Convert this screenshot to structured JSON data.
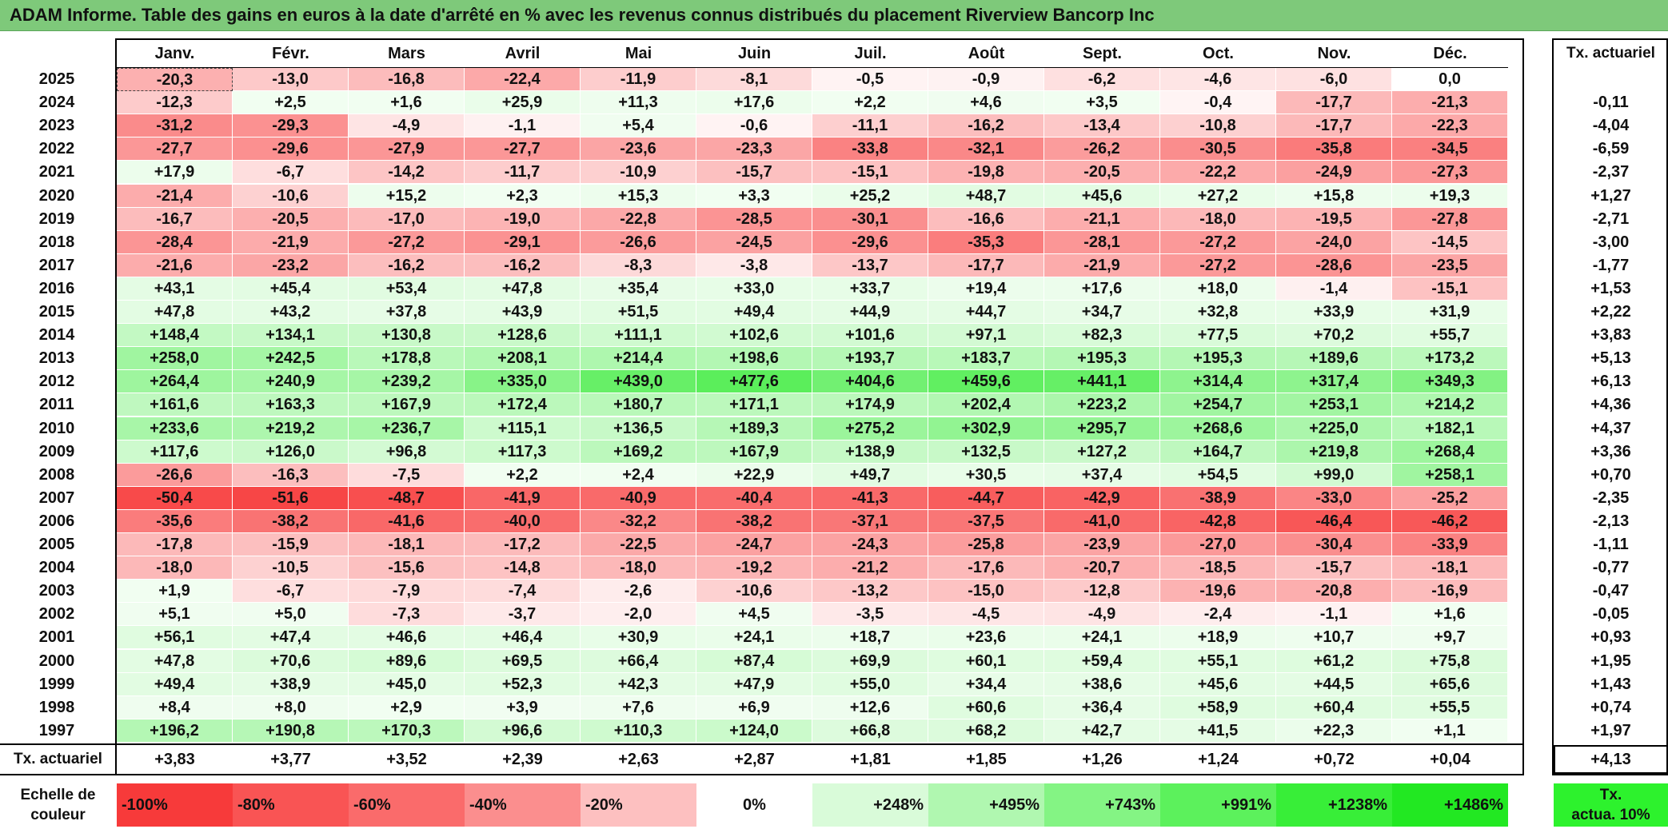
{
  "title": "ADAM Informe. Table des gains en euros à la date d'arrêté en % avec les revenus connus distribués du placement Riverview Bancorp Inc",
  "months": [
    "Janv.",
    "Févr.",
    "Mars",
    "Avril",
    "Mai",
    "Juin",
    "Juil.",
    "Août",
    "Sept.",
    "Oct.",
    "Nov.",
    "Déc."
  ],
  "annual_header": "Tx. actuariel",
  "rows": [
    {
      "year": "2025",
      "values": [
        "-20,3",
        "-13,0",
        "-16,8",
        "-22,4",
        "-11,9",
        "-8,1",
        "-0,5",
        "-0,9",
        "-6,2",
        "-4,6",
        "-6,0",
        "0,0"
      ],
      "annual": ""
    },
    {
      "year": "2024",
      "values": [
        "-12,3",
        "+2,5",
        "+1,6",
        "+25,9",
        "+11,3",
        "+17,6",
        "+2,2",
        "+4,6",
        "+3,5",
        "-0,4",
        "-17,7",
        "-21,3"
      ],
      "annual": "-0,11"
    },
    {
      "year": "2023",
      "values": [
        "-31,2",
        "-29,3",
        "-4,9",
        "-1,1",
        "+5,4",
        "-0,6",
        "-11,1",
        "-16,2",
        "-13,4",
        "-10,8",
        "-17,7",
        "-22,3"
      ],
      "annual": "-4,04"
    },
    {
      "year": "2022",
      "values": [
        "-27,7",
        "-29,6",
        "-27,9",
        "-27,7",
        "-23,6",
        "-23,3",
        "-33,8",
        "-32,1",
        "-26,2",
        "-30,5",
        "-35,8",
        "-34,5"
      ],
      "annual": "-6,59"
    },
    {
      "year": "2021",
      "values": [
        "+17,9",
        "-6,7",
        "-14,2",
        "-11,7",
        "-10,9",
        "-15,7",
        "-15,1",
        "-19,8",
        "-20,5",
        "-22,2",
        "-24,9",
        "-27,3"
      ],
      "annual": "-2,37"
    },
    {
      "year": "2020",
      "values": [
        "-21,4",
        "-10,6",
        "+15,2",
        "+2,3",
        "+15,3",
        "+3,3",
        "+25,2",
        "+48,7",
        "+45,6",
        "+27,2",
        "+15,8",
        "+19,3"
      ],
      "annual": "+1,27"
    },
    {
      "year": "2019",
      "values": [
        "-16,7",
        "-20,5",
        "-17,0",
        "-19,0",
        "-22,8",
        "-28,5",
        "-30,1",
        "-16,6",
        "-21,1",
        "-18,0",
        "-19,5",
        "-27,8"
      ],
      "annual": "-2,71"
    },
    {
      "year": "2018",
      "values": [
        "-28,4",
        "-21,9",
        "-27,2",
        "-29,1",
        "-26,6",
        "-24,5",
        "-29,6",
        "-35,3",
        "-28,1",
        "-27,2",
        "-24,0",
        "-14,5"
      ],
      "annual": "-3,00"
    },
    {
      "year": "2017",
      "values": [
        "-21,6",
        "-23,2",
        "-16,2",
        "-16,2",
        "-8,3",
        "-3,8",
        "-13,7",
        "-17,7",
        "-21,9",
        "-27,2",
        "-28,6",
        "-23,5"
      ],
      "annual": "-1,77"
    },
    {
      "year": "2016",
      "values": [
        "+43,1",
        "+45,4",
        "+53,4",
        "+47,8",
        "+35,4",
        "+33,0",
        "+33,7",
        "+19,4",
        "+17,6",
        "+18,0",
        "-1,4",
        "-15,1"
      ],
      "annual": "+1,53"
    },
    {
      "year": "2015",
      "values": [
        "+47,8",
        "+43,2",
        "+37,8",
        "+43,9",
        "+51,5",
        "+49,4",
        "+44,9",
        "+44,7",
        "+34,7",
        "+32,8",
        "+33,9",
        "+31,9"
      ],
      "annual": "+2,22"
    },
    {
      "year": "2014",
      "values": [
        "+148,4",
        "+134,1",
        "+130,8",
        "+128,6",
        "+111,1",
        "+102,6",
        "+101,6",
        "+97,1",
        "+82,3",
        "+77,5",
        "+70,2",
        "+55,7"
      ],
      "annual": "+3,83"
    },
    {
      "year": "2013",
      "values": [
        "+258,0",
        "+242,5",
        "+178,8",
        "+208,1",
        "+214,4",
        "+198,6",
        "+193,7",
        "+183,7",
        "+195,3",
        "+195,3",
        "+189,6",
        "+173,2"
      ],
      "annual": "+5,13"
    },
    {
      "year": "2012",
      "values": [
        "+264,4",
        "+240,9",
        "+239,2",
        "+335,0",
        "+439,0",
        "+477,6",
        "+404,6",
        "+459,6",
        "+441,1",
        "+314,4",
        "+317,4",
        "+349,3"
      ],
      "annual": "+6,13"
    },
    {
      "year": "2011",
      "values": [
        "+161,6",
        "+163,3",
        "+167,9",
        "+172,4",
        "+180,7",
        "+171,1",
        "+174,9",
        "+202,4",
        "+223,2",
        "+254,7",
        "+253,1",
        "+214,2"
      ],
      "annual": "+4,36"
    },
    {
      "year": "2010",
      "values": [
        "+233,6",
        "+219,2",
        "+236,7",
        "+115,1",
        "+136,5",
        "+189,3",
        "+275,2",
        "+302,9",
        "+295,7",
        "+268,6",
        "+225,0",
        "+182,1"
      ],
      "annual": "+4,37"
    },
    {
      "year": "2009",
      "values": [
        "+117,6",
        "+126,0",
        "+96,8",
        "+117,3",
        "+169,2",
        "+167,9",
        "+138,9",
        "+132,5",
        "+127,2",
        "+164,7",
        "+219,8",
        "+268,4"
      ],
      "annual": "+3,36"
    },
    {
      "year": "2008",
      "values": [
        "-26,6",
        "-16,3",
        "-7,5",
        "+2,2",
        "+2,4",
        "+22,9",
        "+49,7",
        "+30,5",
        "+37,4",
        "+54,5",
        "+99,0",
        "+258,1"
      ],
      "annual": "+0,70"
    },
    {
      "year": "2007",
      "values": [
        "-50,4",
        "-51,6",
        "-48,7",
        "-41,9",
        "-40,9",
        "-40,4",
        "-41,3",
        "-44,7",
        "-42,9",
        "-38,9",
        "-33,0",
        "-25,2"
      ],
      "annual": "-2,35"
    },
    {
      "year": "2006",
      "values": [
        "-35,6",
        "-38,2",
        "-41,6",
        "-40,0",
        "-32,2",
        "-38,2",
        "-37,1",
        "-37,5",
        "-41,0",
        "-42,8",
        "-46,4",
        "-46,2"
      ],
      "annual": "-2,13"
    },
    {
      "year": "2005",
      "values": [
        "-17,8",
        "-15,9",
        "-18,1",
        "-17,2",
        "-22,5",
        "-24,7",
        "-24,3",
        "-25,8",
        "-23,9",
        "-27,0",
        "-30,4",
        "-33,9"
      ],
      "annual": "-1,11"
    },
    {
      "year": "2004",
      "values": [
        "-18,0",
        "-10,5",
        "-15,6",
        "-14,8",
        "-18,0",
        "-19,2",
        "-21,2",
        "-17,6",
        "-20,7",
        "-18,5",
        "-15,7",
        "-18,1"
      ],
      "annual": "-0,77"
    },
    {
      "year": "2003",
      "values": [
        "+1,9",
        "-6,7",
        "-7,9",
        "-7,4",
        "-2,6",
        "-10,6",
        "-13,2",
        "-15,0",
        "-12,8",
        "-19,6",
        "-20,8",
        "-16,9"
      ],
      "annual": "-0,47"
    },
    {
      "year": "2002",
      "values": [
        "+5,1",
        "+5,0",
        "-7,3",
        "-3,7",
        "-2,0",
        "+4,5",
        "-3,5",
        "-4,5",
        "-4,9",
        "-2,4",
        "-1,1",
        "+1,6"
      ],
      "annual": "-0,05"
    },
    {
      "year": "2001",
      "values": [
        "+56,1",
        "+47,4",
        "+46,6",
        "+46,4",
        "+30,9",
        "+24,1",
        "+18,7",
        "+23,6",
        "+24,1",
        "+18,9",
        "+10,7",
        "+9,7"
      ],
      "annual": "+0,93"
    },
    {
      "year": "2000",
      "values": [
        "+47,8",
        "+70,6",
        "+89,6",
        "+69,5",
        "+66,4",
        "+87,4",
        "+69,9",
        "+60,1",
        "+59,4",
        "+55,1",
        "+61,2",
        "+75,8"
      ],
      "annual": "+1,95"
    },
    {
      "year": "1999",
      "values": [
        "+49,4",
        "+38,9",
        "+45,0",
        "+52,3",
        "+42,3",
        "+47,9",
        "+55,0",
        "+34,4",
        "+38,6",
        "+45,6",
        "+44,5",
        "+65,6"
      ],
      "annual": "+1,43"
    },
    {
      "year": "1998",
      "values": [
        "+8,4",
        "+8,0",
        "+2,9",
        "+3,9",
        "+7,6",
        "+6,9",
        "+12,6",
        "+60,6",
        "+36,4",
        "+58,9",
        "+60,4",
        "+55,5"
      ],
      "annual": "+0,74"
    },
    {
      "year": "1997",
      "values": [
        "+196,2",
        "+190,8",
        "+170,3",
        "+96,6",
        "+110,3",
        "+124,0",
        "+66,8",
        "+68,2",
        "+42,7",
        "+41,5",
        "+22,3",
        "+1,1"
      ],
      "annual": "+1,97"
    }
  ],
  "summary": {
    "label": "Tx. actuariel",
    "values": [
      "+3,83",
      "+3,77",
      "+3,52",
      "+2,39",
      "+2,63",
      "+2,87",
      "+1,81",
      "+1,85",
      "+1,26",
      "+1,24",
      "+0,72",
      "+0,04"
    ],
    "annual": "+4,13"
  },
  "scale": {
    "label_line1": "Echelle de",
    "label_line2": "couleur",
    "stops": [
      "-100%",
      "-80%",
      "-60%",
      "-40%",
      "-20%",
      "0%",
      "+248%",
      "+495%",
      "+743%",
      "+991%",
      "+1238%",
      "+1486%"
    ],
    "stop_colors": [
      "#f73a3a",
      "#f95454",
      "#fa6b6b",
      "#fb8e8e",
      "#fdc0c0",
      "#ffffff",
      "#d9fbd9",
      "#b0f7b0",
      "#84f484",
      "#5cf15c",
      "#38ee38",
      "#22e822"
    ],
    "last_line1": "Tx.",
    "last_line2": "actua. 10%",
    "last_color": "#2df22d"
  },
  "colors": {
    "title_bg": "#7ec97a",
    "neg_max": "#f73a3a",
    "pos_max": "#22e822"
  }
}
